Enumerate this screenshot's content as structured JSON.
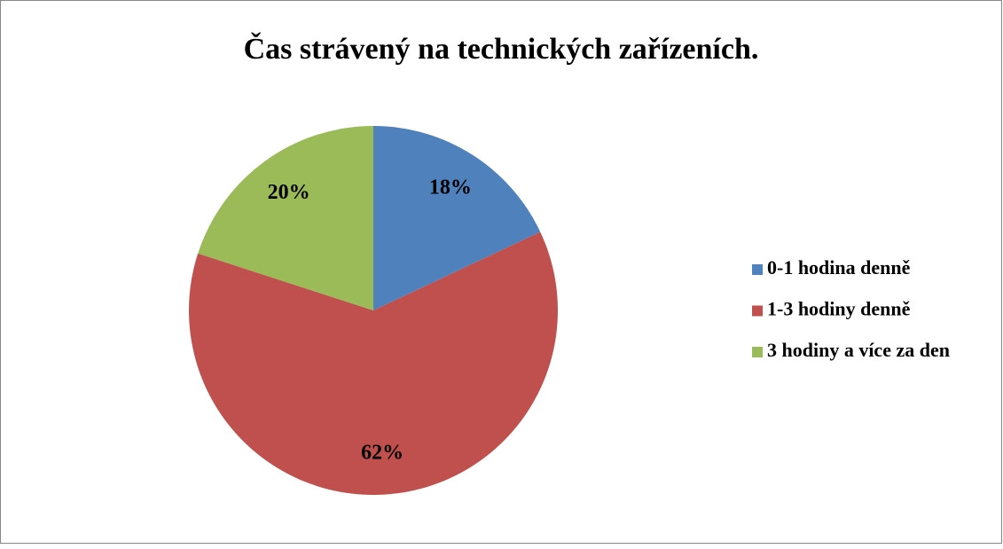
{
  "chart_data": {
    "type": "pie",
    "title": "Čas strávený na technických zařízeních.",
    "categories": [
      "0-1 hodina denně",
      "1-3 hodiny denně",
      "3 hodiny a více za den"
    ],
    "values": [
      18,
      62,
      20
    ],
    "value_labels": [
      "18%",
      "62%",
      "20%"
    ],
    "colors": [
      "#4f81bd",
      "#c0504d",
      "#9bbb59"
    ],
    "legend": "right"
  }
}
